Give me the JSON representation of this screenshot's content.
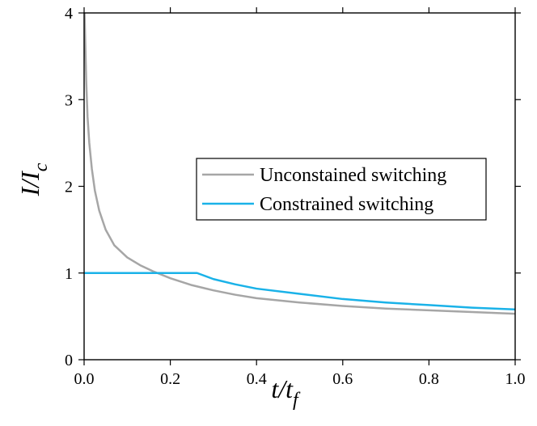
{
  "chart_data": {
    "type": "line",
    "xlabel": {
      "main": "t/t",
      "sub": "f"
    },
    "ylabel": {
      "main": "I/I",
      "sub": "c"
    },
    "xlim": [
      0,
      1.0
    ],
    "ylim": [
      0,
      4
    ],
    "x_ticks": [
      0.0,
      0.2,
      0.4,
      0.6,
      0.8,
      1.0
    ],
    "x_tick_labels": [
      "0.0",
      "0.2",
      "0.4",
      "0.6",
      "0.8",
      "1.0"
    ],
    "y_ticks": [
      0,
      1,
      2,
      3,
      4
    ],
    "y_tick_labels": [
      "0",
      "1",
      "2",
      "3",
      "4"
    ],
    "grid": false,
    "legend_position": "center-right",
    "series": [
      {
        "name": "Unconstained switching",
        "color": "#a6a6a6",
        "points": [
          [
            0.001,
            4.0
          ],
          [
            0.003,
            3.6
          ],
          [
            0.005,
            3.2
          ],
          [
            0.008,
            2.8
          ],
          [
            0.012,
            2.5
          ],
          [
            0.018,
            2.2
          ],
          [
            0.025,
            1.95
          ],
          [
            0.035,
            1.72
          ],
          [
            0.05,
            1.5
          ],
          [
            0.07,
            1.32
          ],
          [
            0.1,
            1.18
          ],
          [
            0.13,
            1.09
          ],
          [
            0.16,
            1.02
          ],
          [
            0.2,
            0.94
          ],
          [
            0.25,
            0.86
          ],
          [
            0.3,
            0.8
          ],
          [
            0.35,
            0.75
          ],
          [
            0.4,
            0.71
          ],
          [
            0.5,
            0.66
          ],
          [
            0.6,
            0.62
          ],
          [
            0.7,
            0.59
          ],
          [
            0.8,
            0.57
          ],
          [
            0.9,
            0.55
          ],
          [
            1.0,
            0.53
          ]
        ]
      },
      {
        "name": "Constrained switching",
        "color": "#1ab2e8",
        "points": [
          [
            0.0,
            1.0
          ],
          [
            0.262,
            1.0
          ],
          [
            0.3,
            0.93
          ],
          [
            0.35,
            0.87
          ],
          [
            0.4,
            0.82
          ],
          [
            0.5,
            0.76
          ],
          [
            0.6,
            0.7
          ],
          [
            0.7,
            0.66
          ],
          [
            0.8,
            0.63
          ],
          [
            0.9,
            0.6
          ],
          [
            1.0,
            0.58
          ]
        ]
      }
    ]
  }
}
